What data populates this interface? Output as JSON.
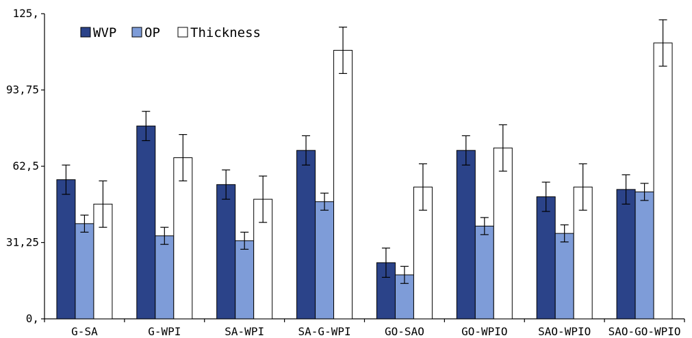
{
  "chart_data": {
    "type": "bar",
    "categories": [
      "G-SA",
      "G-WPI",
      "SA-WPI",
      "SA-G-WPI",
      "GO-SAO",
      "GO-WPIO",
      "SAO-WPIO",
      "SAO-GO-WPIO"
    ],
    "series": [
      {
        "name": "WVP",
        "values": [
          57,
          79,
          55,
          69,
          23,
          69,
          50,
          53
        ],
        "errors": [
          6,
          6,
          6,
          6,
          6,
          6,
          6,
          6
        ]
      },
      {
        "name": "OP",
        "values": [
          39,
          34,
          32,
          48,
          18,
          38,
          35,
          52
        ],
        "errors": [
          3.5,
          3.5,
          3.5,
          3.5,
          3.5,
          3.5,
          3.5,
          3.5
        ]
      },
      {
        "name": "Thickness",
        "values": [
          47,
          66,
          49,
          110,
          54,
          70,
          54,
          113
        ],
        "errors": [
          9.5,
          9.5,
          9.5,
          9.5,
          9.5,
          9.5,
          9.5,
          9.5
        ]
      }
    ],
    "ylim": [
      0,
      125
    ],
    "yticks": [
      "0,",
      "31,25",
      "62,5",
      "93,75",
      "125,"
    ],
    "legend_position": "top-left",
    "colors": {
      "WVP": "#2b4389",
      "OP": "#7e9cd8",
      "Thickness": "#ffffff",
      "outline": "#000000"
    },
    "title": "",
    "xlabel": "",
    "ylabel": ""
  }
}
